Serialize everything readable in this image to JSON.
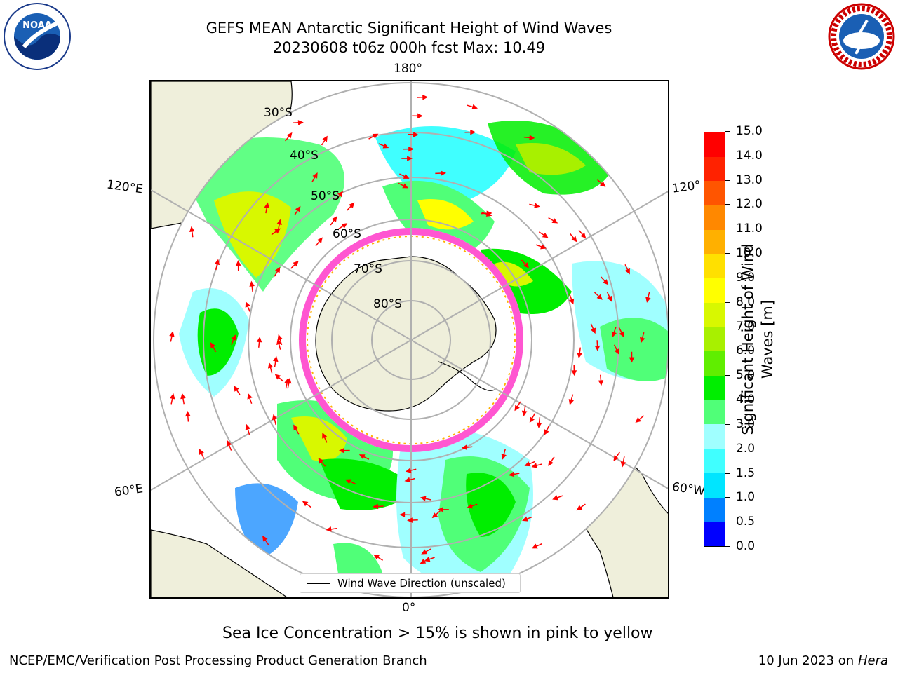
{
  "header": {
    "title_line1": "GEFS MEAN Antarctic Significant Height of Wind Waves",
    "title_line2": "20230608 t06z 000h fcst   Max: 10.49"
  },
  "logos": {
    "left_text": "NOAA",
    "left_ring_text": "NATIONAL OCEANIC AND ATMOSPHERIC ADMINISTRATION",
    "left_bottom_text": "U.S. DEPARTMENT OF COMMERCE",
    "right_ring_text": "NATIONAL WEATHER SERVICE"
  },
  "map": {
    "projection": "south-polar-stereographic",
    "lon_labels": {
      "top": "180°",
      "bottom": "0°",
      "upper_left": "120°E",
      "lower_left": "60°E",
      "upper_right": "120°",
      "lower_right": "60°W"
    },
    "lat_labels": [
      "30°S",
      "40°S",
      "50°S",
      "60°S",
      "70°S",
      "80°S"
    ],
    "legend_label": "Wind Wave Direction (unscaled)",
    "colors": {
      "land": "#efefdb",
      "grid": "#b0b0b0",
      "arrow": "#ff0000",
      "sea_ice": "#ff44cc"
    }
  },
  "colorbar": {
    "label": "Significant Height of Wind Waves [m]",
    "ticks": [
      "0.0",
      "0.5",
      "1.0",
      "1.5",
      "2.0",
      "3.0",
      "4.0",
      "5.0",
      "6.0",
      "7.0",
      "8.0",
      "9.0",
      "10.0",
      "11.0",
      "12.0",
      "13.0",
      "14.0",
      "15.0"
    ],
    "colors": [
      "#0000ff",
      "#0080ff",
      "#00e5ff",
      "#40ffff",
      "#a0ffff",
      "#50ff78",
      "#00ee00",
      "#60ee00",
      "#a8f000",
      "#d8f800",
      "#ffff00",
      "#ffe000",
      "#ffb000",
      "#ff8800",
      "#ff5500",
      "#ff2200",
      "#ff0000"
    ]
  },
  "note": "Sea Ice Concentration > 15% is shown in pink to yellow",
  "footer": {
    "left": "NCEP/EMC/Verification Post Processing Product Generation Branch",
    "right_date": "10 Jun 2023 on",
    "right_host": "Hera"
  }
}
